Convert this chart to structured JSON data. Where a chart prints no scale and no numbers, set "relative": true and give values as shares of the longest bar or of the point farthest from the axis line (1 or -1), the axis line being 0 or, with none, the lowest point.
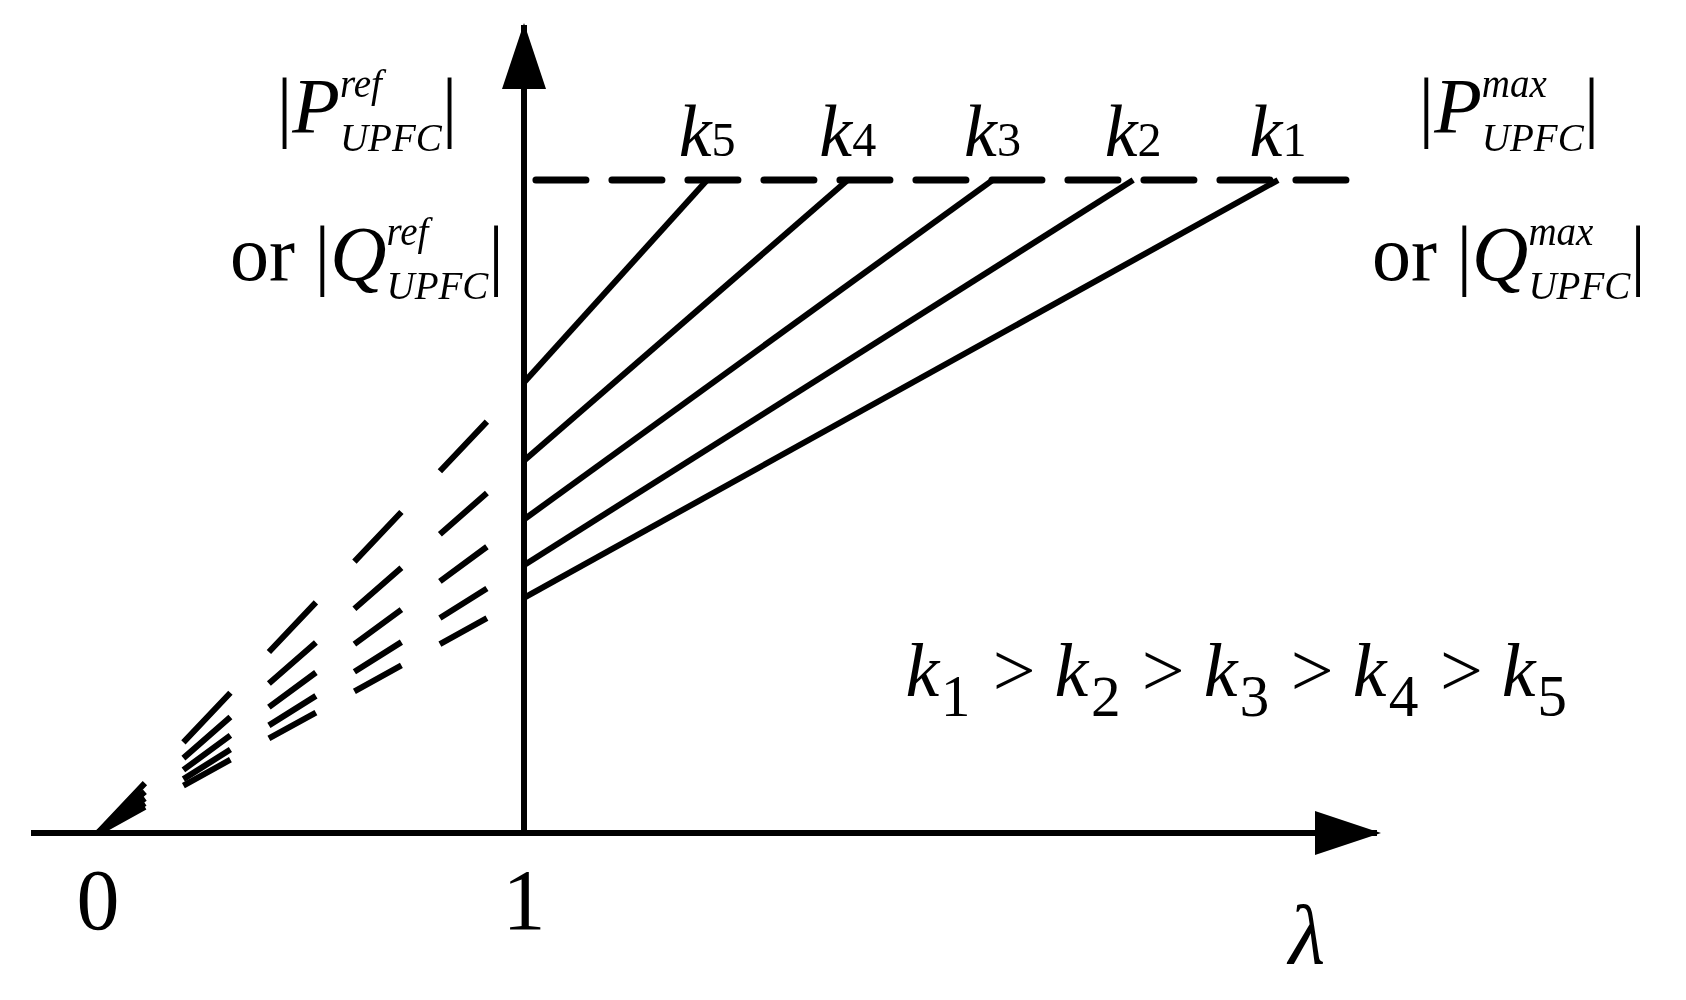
{
  "chart_data": {
    "type": "line",
    "relative": true,
    "ylabel": "|P$^{ref}$$_{UPFC}$|\nor |Q$^{ref}$$_{UPFC}$|",
    "xlabel": "λ",
    "xlim": [
      -0.15,
      3.0
    ],
    "xticks": [
      0,
      1
    ],
    "marker": "none",
    "line_style": "solid",
    "series": [
      {
        "name": "k1",
        "color": "#000000",
        "x": [
          1,
          2.77
        ],
        "values": [
          0.36,
          1
        ]
      },
      {
        "name": "k2",
        "color": "#000000",
        "x": [
          1,
          2.43
        ],
        "values": [
          0.41,
          1
        ]
      },
      {
        "name": "k3",
        "color": "#000000",
        "x": [
          1,
          2.1
        ],
        "values": [
          0.48,
          1
        ]
      },
      {
        "name": "k4",
        "color": "#000000",
        "x": [
          1,
          1.76
        ],
        "values": [
          0.57,
          1
        ]
      },
      {
        "name": "k5",
        "color": "#000000",
        "x": [
          1,
          1.43
        ],
        "values": [
          0.69,
          1
        ]
      },
      {
        "color": "#000000",
        "x": [
          0,
          1
        ],
        "values": [
          0,
          0.36
        ],
        "line_style": "dashed"
      },
      {
        "color": "#000000",
        "x": [
          0,
          1
        ],
        "values": [
          0,
          0.41
        ],
        "line_style": "dashed"
      },
      {
        "color": "#000000",
        "x": [
          0,
          1
        ],
        "values": [
          0,
          0.48
        ],
        "line_style": "dashed"
      },
      {
        "color": "#000000",
        "x": [
          0,
          1
        ],
        "values": [
          0,
          0.57
        ],
        "line_style": "dashed"
      },
      {
        "color": "#000000",
        "x": [
          0,
          1
        ],
        "values": [
          0,
          0.69
        ],
        "line_style": "dashed"
      }
    ],
    "ref_lines": [
      {
        "axis": "y",
        "value": 1,
        "label": "|P$^{max}$$_{UPFC}$|\nor |Q$^{max}$$_{UPFC}$|",
        "line_style": "dashed",
        "color": "#000000"
      }
    ],
    "annotations": [
      "k₁ > k₂ > k₃ > k₄ > k₅"
    ]
  }
}
